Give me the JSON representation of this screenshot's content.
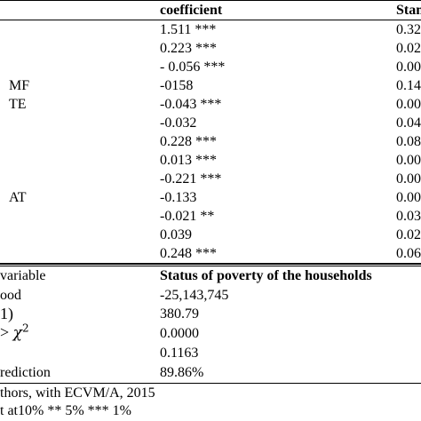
{
  "header": {
    "coefficient_label": "coefficient",
    "std_label": "Stan"
  },
  "rows": [
    {
      "label": "",
      "coef": "1.511 ***",
      "std": "0.32"
    },
    {
      "label": "",
      "coef": "0.223 ***",
      "std": "0.02"
    },
    {
      "label": "",
      "coef": "- 0.056 ***",
      "std": "0.00"
    },
    {
      "label": "MF",
      "coef": "-0158",
      "std": "0.14"
    },
    {
      "label": "TE",
      "coef": "-0.043 ***",
      "std": "0.00"
    },
    {
      "label": "",
      "coef": "-0.032",
      "std": "0.04"
    },
    {
      "label": "",
      "coef": "0.228 ***",
      "std": "0.08"
    },
    {
      "label": "",
      "coef": "0.013 ***",
      "std": "0.00"
    },
    {
      "label": "",
      "coef": "-0.221 ***",
      "std": "0.00"
    },
    {
      "label": "AT",
      "coef": "-0.133",
      "std": "0.00"
    },
    {
      "label": "",
      "coef": "-0.021 **",
      "std": "0.03"
    },
    {
      "label": "",
      "coef": "0.039",
      "std": "0.02"
    },
    {
      "label": "",
      "coef": "0.248 ***",
      "std": "0.06"
    }
  ],
  "stats_header": {
    "label": "variable",
    "value": "Status of poverty of the households"
  },
  "stats": [
    {
      "label": "ood",
      "value": "-25,143,745"
    },
    {
      "label": "1)",
      "value": "380.79"
    },
    {
      "label_prefix": ">",
      "label_symbol": "χ",
      "label_power": "2",
      "value": "0.0000"
    },
    {
      "label": "",
      "value": "0.1163"
    },
    {
      "label": "rediction",
      "value": "89.86%"
    }
  ],
  "footnotes": {
    "source": "thors, with ECVM/A, 2015",
    "significance": "t at10% ** 5% *** 1%"
  }
}
